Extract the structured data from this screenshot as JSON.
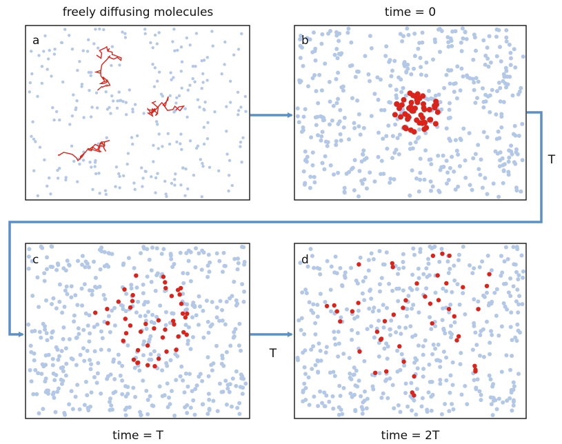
{
  "panels": [
    {
      "label": "a",
      "caption": "freely diffusing molecules"
    },
    {
      "label": "b",
      "caption": "time = 0"
    },
    {
      "label": "c",
      "caption": "time = T"
    },
    {
      "label": "d",
      "caption": "time = 2T"
    }
  ],
  "arrows": [
    {
      "label": "T"
    },
    {
      "label": "T"
    }
  ]
}
